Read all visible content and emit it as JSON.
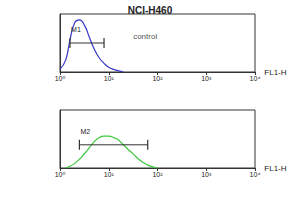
{
  "chart_data": [
    {
      "type": "line",
      "title": "NCI-H460",
      "log": "x",
      "grid": false,
      "tick_labels": "x",
      "xlabel": "FL1-H",
      "xlim": [
        1,
        10000
      ],
      "xticks": [
        {
          "value": 1,
          "label": "10⁰"
        },
        {
          "value": 10,
          "label": "10¹"
        },
        {
          "value": 100,
          "label": "10²"
        },
        {
          "value": 1000,
          "label": "10³"
        },
        {
          "value": 10000,
          "label": "10⁴"
        }
      ],
      "ylim": [
        0,
        100
      ],
      "series": [
        {
          "name": "control",
          "color": "#3838c8",
          "x": [
            1,
            1.3,
            1.6,
            2,
            2.5,
            3.2,
            4,
            5,
            6.3,
            8,
            10,
            13,
            16,
            20
          ],
          "values": [
            5,
            20,
            55,
            85,
            90,
            80,
            60,
            40,
            25,
            15,
            8,
            4,
            2,
            0
          ]
        }
      ],
      "gates": [
        {
          "label": "M1",
          "x": [
            1.6,
            8
          ],
          "y": 50
        }
      ],
      "annotations": [
        {
          "text": "control",
          "x": 25,
          "y": 62
        }
      ]
    },
    {
      "type": "line",
      "log": "x",
      "grid": false,
      "tick_labels": "x",
      "xlabel": "FL1-H",
      "xlim": [
        1,
        10000
      ],
      "xticks": [
        {
          "value": 1,
          "label": "10⁰"
        },
        {
          "value": 10,
          "label": "10¹"
        },
        {
          "value": 100,
          "label": "10²"
        },
        {
          "value": 1000,
          "label": "10³"
        },
        {
          "value": 10000,
          "label": "10⁴"
        }
      ],
      "ylim": [
        0,
        100
      ],
      "series": [
        {
          "color": "#3cc83c",
          "x": [
            1.3,
            1.6,
            2,
            2.5,
            3.2,
            4,
            5,
            6.3,
            8,
            10,
            13,
            16,
            20,
            25,
            32,
            40,
            50,
            63,
            80,
            100
          ],
          "values": [
            0,
            3,
            8,
            15,
            25,
            35,
            45,
            52,
            55,
            55,
            52,
            48,
            40,
            32,
            24,
            16,
            10,
            5,
            2,
            0
          ]
        }
      ],
      "gates": [
        {
          "label": "M2",
          "x": [
            2.5,
            63
          ],
          "y": 40
        }
      ]
    }
  ]
}
